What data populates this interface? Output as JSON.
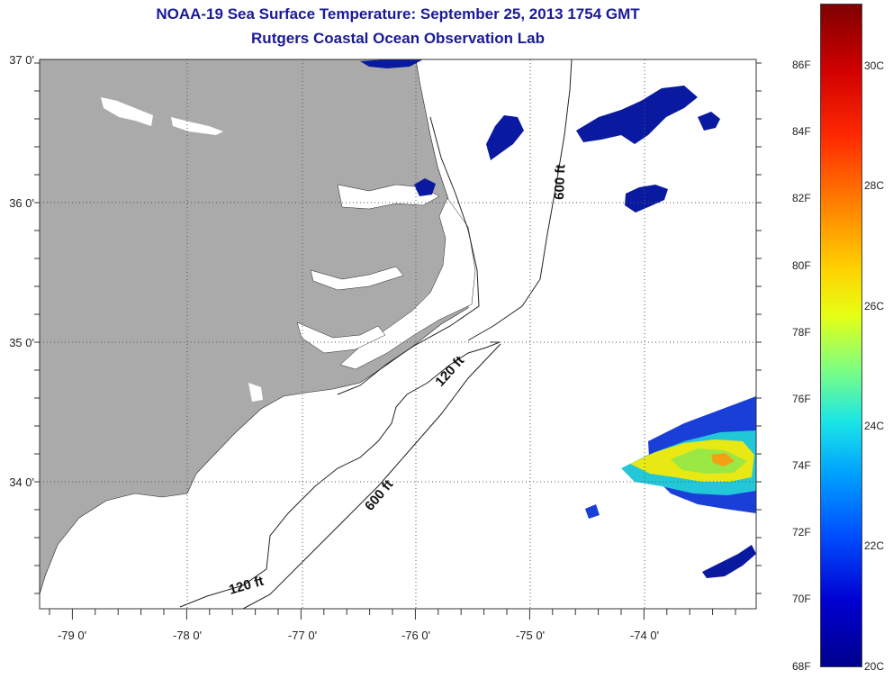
{
  "title": {
    "line1": "NOAA-19 Sea Surface Temperature:  September 25, 2013 1754 GMT",
    "line2": "Rutgers Coastal Ocean Observation Lab"
  },
  "map": {
    "lat_labels": [
      "37 0'",
      "36 0'",
      "35 0'",
      "34 0'"
    ],
    "lon_labels": [
      "-79 0'",
      "-78 0'",
      "-77 0'",
      "-76 0'",
      "-75 0'",
      "-74 0'"
    ],
    "contour_labels": [
      "600 ft",
      "120 ft",
      "600 ft",
      "120 ft"
    ],
    "colors": {
      "land": "#aaaaaa",
      "ocean": "#ffffff",
      "grid": "#555555"
    }
  },
  "colorbar": {
    "fahrenheit": [
      "86F",
      "84F",
      "82F",
      "80F",
      "78F",
      "76F",
      "74F",
      "72F",
      "70F",
      "68F"
    ],
    "celsius": [
      "30C",
      "28C",
      "26C",
      "24C",
      "22C",
      "20C"
    ],
    "range_f": [
      68,
      88
    ],
    "range_c": [
      20,
      31
    ]
  }
}
